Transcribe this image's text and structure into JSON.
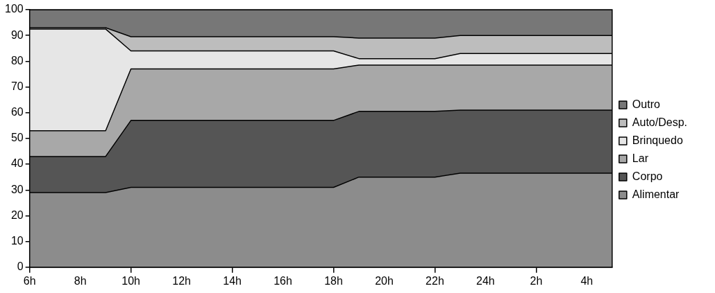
{
  "chart_data": {
    "type": "area",
    "stacked": true,
    "categories": [
      "6h",
      null,
      "8h",
      null,
      "10h",
      null,
      "12h",
      null,
      "14h",
      null,
      "16h",
      null,
      "18h",
      null,
      "20h",
      null,
      "22h",
      null,
      "24h",
      null,
      "2h",
      null,
      "4h",
      null
    ],
    "series": [
      {
        "name": "Alimentar",
        "color": "#8c8c8c",
        "values": [
          29,
          29,
          29,
          29,
          31,
          31,
          31,
          31,
          31,
          31,
          31,
          31,
          31,
          35,
          35,
          35,
          35,
          36.5,
          36.5,
          36.5,
          36.5,
          36.5,
          36.5,
          36.5
        ]
      },
      {
        "name": "Corpo",
        "color": "#555555",
        "values": [
          14,
          14,
          14,
          14,
          26,
          26,
          26,
          26,
          26,
          26,
          26,
          26,
          26,
          25.5,
          25.5,
          25.5,
          25.5,
          24.5,
          24.5,
          24.5,
          24.5,
          24.5,
          24.5,
          24.5
        ]
      },
      {
        "name": "Lar",
        "color": "#a8a8a8",
        "values": [
          10,
          10,
          10,
          10,
          20,
          20,
          20,
          20,
          20,
          20,
          20,
          20,
          20,
          18,
          18,
          18,
          18,
          17.5,
          17.5,
          17.5,
          17.5,
          17.5,
          17.5,
          17.5
        ]
      },
      {
        "name": "Brinquedo",
        "color": "#e6e6e6",
        "values": [
          39.5,
          39.5,
          39.5,
          39.5,
          7,
          7,
          7,
          7,
          7,
          7,
          7,
          7,
          7,
          2.5,
          2.5,
          2.5,
          2.5,
          4.5,
          4.5,
          4.5,
          4.5,
          4.5,
          4.5,
          4.5
        ]
      },
      {
        "name": "Auto/Desp.",
        "color": "#bdbdbd",
        "values": [
          0.5,
          0.5,
          0.5,
          0.5,
          5.5,
          5.5,
          5.5,
          5.5,
          5.5,
          5.5,
          5.5,
          5.5,
          5.5,
          8,
          8,
          8,
          8,
          7,
          7,
          7,
          7,
          7,
          7,
          7
        ]
      },
      {
        "name": "Outro",
        "color": "#777777",
        "values": [
          7,
          7,
          7,
          7,
          10.5,
          10.5,
          10.5,
          10.5,
          10.5,
          10.5,
          10.5,
          10.5,
          10.5,
          11,
          11,
          11,
          11,
          10,
          10,
          10,
          10,
          10,
          10,
          10
        ]
      }
    ],
    "ylim": [
      0,
      100
    ],
    "yticks": [
      0,
      10,
      20,
      30,
      40,
      50,
      60,
      70,
      80,
      90,
      100
    ],
    "grid": false,
    "legend": "right"
  }
}
